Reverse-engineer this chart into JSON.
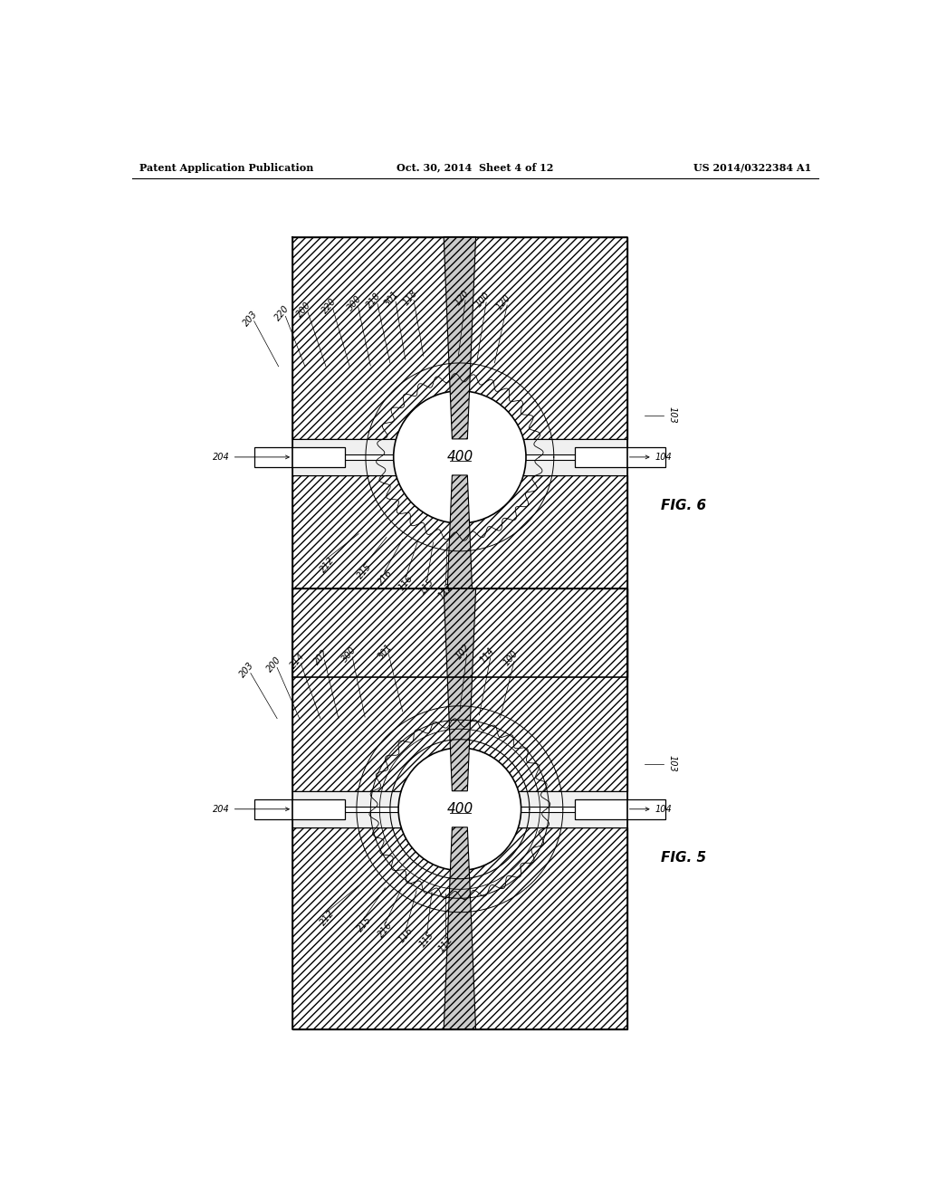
{
  "background_color": "#ffffff",
  "header_left": "Patent Application Publication",
  "header_center": "Oct. 30, 2014  Sheet 4 of 12",
  "header_right": "US 2014/0322384 A1",
  "fig6_label": "FIG. 6",
  "fig5_label": "FIG. 5",
  "ball_label": "400",
  "hatch_pattern": "////",
  "hatch_color": "#000000",
  "line_color": "#000000",
  "fill_color": "#d0d0d0"
}
